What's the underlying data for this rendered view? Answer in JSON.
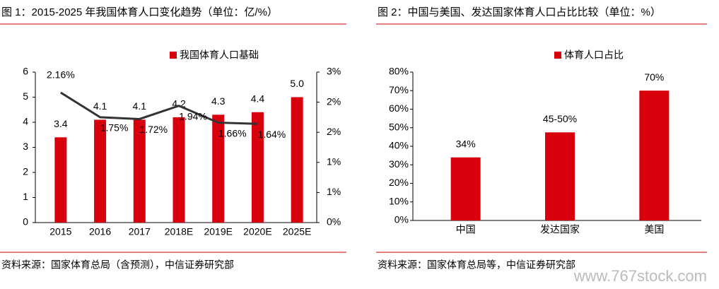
{
  "chart_data": [
    {
      "type": "bar_line",
      "title": "图 1：2015-2025 年我国体育人口变化趋势（单位：亿/%）",
      "source": "资料来源：国家体育总局（含预测），中信证券研究部",
      "categories": [
        "2015",
        "2016",
        "2017",
        "2018E",
        "2019E",
        "2020E",
        "2025E"
      ],
      "series": [
        {
          "name": "我国体育人口基础",
          "color": "#d9000d",
          "values": [
            3.4,
            4.1,
            4.1,
            4.2,
            4.3,
            4.4,
            5.0
          ],
          "value_labels": [
            "3.4",
            "4.1",
            "4.1",
            "4.2",
            "4.3",
            "4.4",
            "5.0"
          ]
        },
        {
          "color": "#333333",
          "axis": "y2",
          "values": [
            2.16,
            1.75,
            1.72,
            1.94,
            1.66,
            1.64,
            null
          ],
          "value_labels": [
            "2.16%",
            "1.75%",
            "1.72%",
            "1.94%",
            "1.66%",
            "1.64%",
            null
          ]
        }
      ],
      "ylim": [
        0,
        6
      ],
      "yticks": [
        0,
        1,
        2,
        3,
        4,
        5,
        6
      ],
      "y2lim": [
        0,
        2.5
      ],
      "y2ticks": [
        {
          "value": 0,
          "label": "0%"
        },
        {
          "value": 0.5,
          "label": "1%"
        },
        {
          "value": 1,
          "label": "1%"
        },
        {
          "value": 1.5,
          "label": "2%"
        },
        {
          "value": 2,
          "label": "2%"
        },
        {
          "value": 2.5,
          "label": "3%"
        }
      ],
      "legend": "top"
    },
    {
      "type": "bar",
      "title": "图 2：中国与美国、发达国家体育人口占比比较（单位：%）",
      "source": "资料来源：国家体育总局等，中信证券研究部",
      "categories": [
        "中国",
        "发达国家",
        "美国"
      ],
      "series": [
        {
          "name": "体育人口占比",
          "color": "#d9000d",
          "values": [
            34,
            47.5,
            70
          ],
          "value_labels": [
            "34%",
            "45-50%",
            "70%"
          ]
        }
      ],
      "ylim": [
        0,
        80
      ],
      "yticks": [
        {
          "value": 0,
          "label": "0%"
        },
        {
          "value": 10,
          "label": "10%"
        },
        {
          "value": 20,
          "label": "20%"
        },
        {
          "value": 30,
          "label": "30%"
        },
        {
          "value": 40,
          "label": "40%"
        },
        {
          "value": 50,
          "label": "50%"
        },
        {
          "value": 60,
          "label": "60%"
        },
        {
          "value": 70,
          "label": "70%"
        },
        {
          "value": 80,
          "label": "80%"
        }
      ],
      "legend": "top"
    }
  ],
  "watermark": "www.767stock.com"
}
